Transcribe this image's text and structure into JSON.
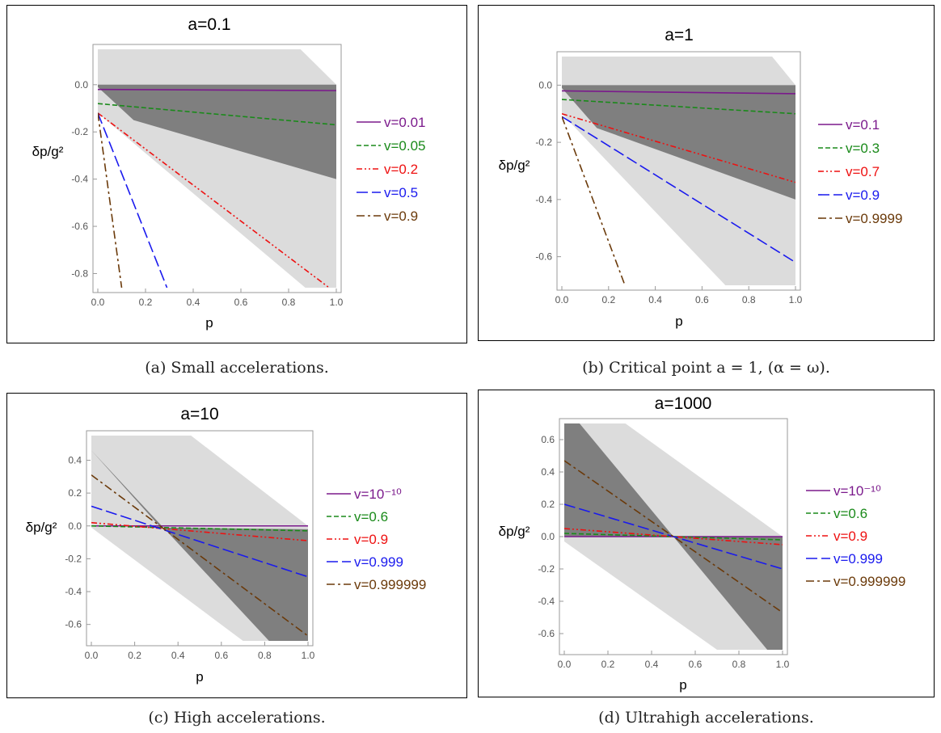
{
  "chart_data": [
    {
      "type": "line",
      "title": "a=0.1",
      "xlabel": "p",
      "ylabel": "δp/g²",
      "xlim": [
        0,
        1
      ],
      "ylim": [
        -0.86,
        0.15
      ],
      "xticks": [
        0.0,
        0.2,
        0.4,
        0.6,
        0.8,
        1.0
      ],
      "xtick_labels": [
        "0.0",
        "0.2",
        "0.4",
        "0.6",
        "0.8",
        "1.0"
      ],
      "yticks": [
        0.0,
        -0.2,
        -0.4,
        -0.6,
        -0.8
      ],
      "ytick_labels": [
        "0.0",
        "-0.2",
        "-0.4",
        "-0.6",
        "-0.8"
      ],
      "grid": false,
      "legend_position": "right",
      "light_band": [
        [
          0.0,
          0.15
        ],
        [
          0.85,
          0.15
        ],
        [
          1.0,
          0.0
        ],
        [
          1.0,
          -0.86
        ],
        [
          0.87,
          -0.86
        ],
        [
          0.0,
          -0.12
        ]
      ],
      "dark_band": [
        [
          0.0,
          0.0
        ],
        [
          1.0,
          0.0
        ],
        [
          1.0,
          -0.4
        ],
        [
          0.15,
          -0.15
        ],
        [
          0.0,
          -0.01
        ]
      ],
      "series": [
        {
          "name": "v=0.01",
          "color": "#7b1a8c",
          "style": "solid",
          "x": [
            0,
            1
          ],
          "y": [
            -0.02,
            -0.025
          ]
        },
        {
          "name": "v=0.05",
          "color": "#1a8a1a",
          "style": "dash",
          "x": [
            0,
            1
          ],
          "y": [
            -0.08,
            -0.17
          ]
        },
        {
          "name": "v=0.2",
          "color": "#ee1111",
          "style": "dashdotdot",
          "x": [
            0,
            0.97
          ],
          "y": [
            -0.12,
            -0.86
          ]
        },
        {
          "name": "v=0.5",
          "color": "#1a1aee",
          "style": "longdash",
          "x": [
            0,
            0.29
          ],
          "y": [
            -0.12,
            -0.86
          ]
        },
        {
          "name": "v=0.9",
          "color": "#6b3a0a",
          "style": "dashdot",
          "x": [
            0,
            0.1
          ],
          "y": [
            -0.12,
            -0.86
          ]
        }
      ]
    },
    {
      "type": "line",
      "title": "a=1",
      "xlabel": "p",
      "ylabel": "δp/g²",
      "xlim": [
        0,
        1
      ],
      "ylim": [
        -0.7,
        0.1
      ],
      "xticks": [
        0.0,
        0.2,
        0.4,
        0.6,
        0.8,
        1.0
      ],
      "xtick_labels": [
        "0.0",
        "0.2",
        "0.4",
        "0.6",
        "0.8",
        "1.0"
      ],
      "yticks": [
        0.0,
        -0.2,
        -0.4,
        -0.6
      ],
      "ytick_labels": [
        "0.0",
        "-0.2",
        "-0.4",
        "-0.6"
      ],
      "grid": false,
      "legend_position": "right",
      "light_band": [
        [
          0.0,
          0.1
        ],
        [
          0.9,
          0.1
        ],
        [
          1.0,
          0.0
        ],
        [
          1.0,
          -0.7
        ],
        [
          0.7,
          -0.7
        ],
        [
          0.0,
          -0.1
        ]
      ],
      "dark_band": [
        [
          0.0,
          0.0
        ],
        [
          1.0,
          0.0
        ],
        [
          1.0,
          -0.4
        ],
        [
          0.15,
          -0.15
        ],
        [
          0.0,
          -0.01
        ]
      ],
      "series": [
        {
          "name": "v=0.1",
          "color": "#7b1a8c",
          "style": "solid",
          "x": [
            0,
            1
          ],
          "y": [
            -0.02,
            -0.03
          ]
        },
        {
          "name": "v=0.3",
          "color": "#1a8a1a",
          "style": "dash",
          "x": [
            0,
            1
          ],
          "y": [
            -0.05,
            -0.1
          ]
        },
        {
          "name": "v=0.7",
          "color": "#ee1111",
          "style": "dashdotdot",
          "x": [
            0,
            1
          ],
          "y": [
            -0.1,
            -0.34
          ]
        },
        {
          "name": "v=0.9",
          "color": "#1a1aee",
          "style": "longdash",
          "x": [
            0,
            1
          ],
          "y": [
            -0.11,
            -0.62
          ]
        },
        {
          "name": "v=0.9999",
          "color": "#6b3a0a",
          "style": "dashdot",
          "x": [
            0,
            0.27
          ],
          "y": [
            -0.11,
            -0.7
          ]
        }
      ]
    },
    {
      "type": "line",
      "title": "a=10",
      "xlabel": "p",
      "ylabel": "δp/g²",
      "xlim": [
        0,
        1
      ],
      "ylim": [
        -0.7,
        0.55
      ],
      "xticks": [
        0.0,
        0.2,
        0.4,
        0.6,
        0.8,
        1.0
      ],
      "xtick_labels": [
        "0.0",
        "0.2",
        "0.4",
        "0.6",
        "0.8",
        "1.0"
      ],
      "yticks": [
        0.4,
        0.2,
        0.0,
        -0.2,
        -0.4,
        -0.6
      ],
      "ytick_labels": [
        "0.4",
        "0.2",
        "0.0",
        "-0.2",
        "-0.4",
        "-0.6"
      ],
      "grid": false,
      "legend_position": "right",
      "light_band": [
        [
          0.0,
          0.55
        ],
        [
          0.46,
          0.55
        ],
        [
          1.0,
          0.0
        ],
        [
          1.0,
          -0.7
        ],
        [
          0.7,
          -0.7
        ],
        [
          0.0,
          -0.01
        ]
      ],
      "dark_band": [
        [
          0.0,
          0.46
        ],
        [
          0.32,
          -0.01
        ],
        [
          1.0,
          -0.02
        ],
        [
          1.0,
          -0.7
        ],
        [
          0.82,
          -0.7
        ]
      ],
      "series": [
        {
          "name": "v=10⁻¹⁰",
          "color": "#7b1a8c",
          "style": "solid",
          "x": [
            0,
            1
          ],
          "y": [
            0.0,
            0.0
          ]
        },
        {
          "name": "v=0.6",
          "color": "#1a8a1a",
          "style": "dash",
          "x": [
            0,
            1
          ],
          "y": [
            0.0,
            -0.03
          ]
        },
        {
          "name": "v=0.9",
          "color": "#ee1111",
          "style": "dashdotdot",
          "x": [
            0,
            1
          ],
          "y": [
            0.02,
            -0.09
          ]
        },
        {
          "name": "v=0.999",
          "color": "#1a1aee",
          "style": "longdash",
          "x": [
            0,
            1
          ],
          "y": [
            0.12,
            -0.31
          ]
        },
        {
          "name": "v=0.999999",
          "color": "#6b3a0a",
          "style": "dashdot",
          "x": [
            0,
            1
          ],
          "y": [
            0.31,
            -0.67
          ]
        }
      ]
    },
    {
      "type": "line",
      "title": "a=1000",
      "xlabel": "p",
      "ylabel": "δp/g²",
      "xlim": [
        0,
        1
      ],
      "ylim": [
        -0.7,
        0.7
      ],
      "xticks": [
        0.0,
        0.2,
        0.4,
        0.6,
        0.8,
        1.0
      ],
      "xtick_labels": [
        "0.0",
        "0.2",
        "0.4",
        "0.6",
        "0.8",
        "1.0"
      ],
      "yticks": [
        0.6,
        0.4,
        0.2,
        0.0,
        -0.2,
        -0.4,
        -0.6
      ],
      "ytick_labels": [
        "0.6",
        "0.4",
        "0.2",
        "0.0",
        "-0.2",
        "-0.4",
        "-0.6"
      ],
      "grid": false,
      "legend_position": "right",
      "light_band": [
        [
          0.0,
          0.7
        ],
        [
          0.28,
          0.7
        ],
        [
          1.0,
          0.0
        ],
        [
          1.0,
          -0.7
        ],
        [
          0.7,
          -0.7
        ],
        [
          0.0,
          -0.03
        ]
      ],
      "dark_band": [
        [
          0.0,
          0.7
        ],
        [
          0.07,
          0.7
        ],
        [
          0.5,
          0.0
        ],
        [
          0.93,
          -0.7
        ],
        [
          1.0,
          -0.7
        ],
        [
          1.0,
          0.0
        ],
        [
          0.5,
          0.0
        ],
        [
          0.0,
          0.0
        ]
      ],
      "series": [
        {
          "name": "v=10⁻¹⁰",
          "color": "#7b1a8c",
          "style": "solid",
          "x": [
            0,
            1
          ],
          "y": [
            0.0,
            0.0
          ]
        },
        {
          "name": "v=0.6",
          "color": "#1a8a1a",
          "style": "dash",
          "x": [
            0,
            1
          ],
          "y": [
            0.02,
            -0.02
          ]
        },
        {
          "name": "v=0.9",
          "color": "#ee1111",
          "style": "dashdotdot",
          "x": [
            0,
            1
          ],
          "y": [
            0.05,
            -0.05
          ]
        },
        {
          "name": "v=0.999",
          "color": "#1a1aee",
          "style": "longdash",
          "x": [
            0,
            1
          ],
          "y": [
            0.2,
            -0.2
          ]
        },
        {
          "name": "v=0.999999",
          "color": "#6b3a0a",
          "style": "dashdot",
          "x": [
            0,
            1
          ],
          "y": [
            0.47,
            -0.47
          ]
        }
      ]
    }
  ],
  "captions": [
    "(a) Small accelerations.",
    "(b) Critical point a = 1, (α = ω).",
    "(c) High accelerations.",
    "(d) Ultrahigh accelerations."
  ],
  "colors": {
    "light_band": "#dcdcdc",
    "dark_band": "#7f7f7f",
    "axis": "#9a9a9a",
    "tick_text": "#555555"
  }
}
